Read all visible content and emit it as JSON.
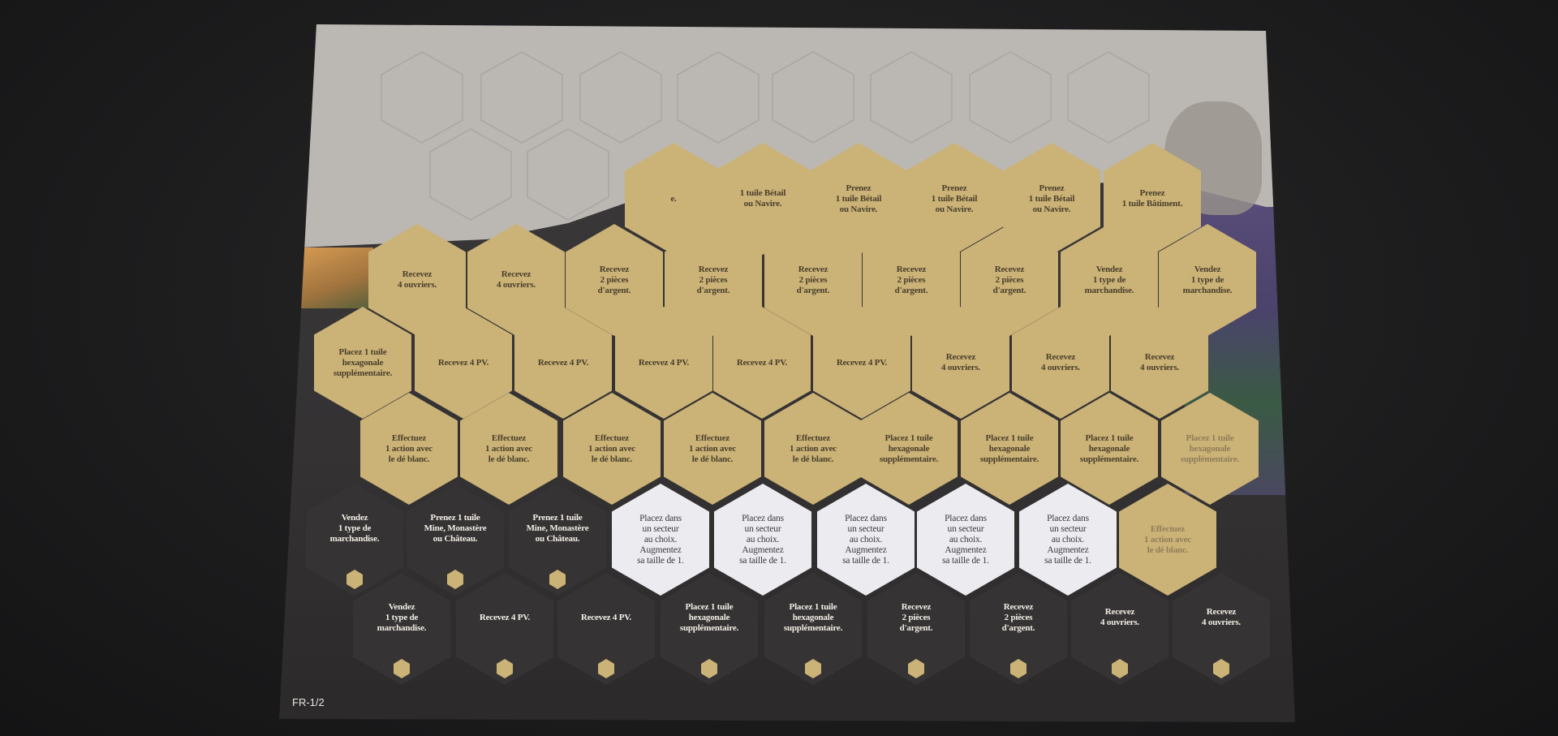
{
  "photo_subject": "punchboard of hexagonal tiles",
  "colors": {
    "gold": "#cbb276",
    "dark": "#363334",
    "white": "#ecebef",
    "cardboard": "#bbb8b4",
    "table": "#1b1b1c"
  },
  "rows": [
    {
      "tiles": [
        {
          "text": "e.",
          "style": "gold"
        },
        {
          "text": "1 tuile Bétail\nou Navire.",
          "style": "gold"
        },
        {
          "text": "Prenez\n1 tuile Bétail\nou Navire.",
          "style": "gold"
        },
        {
          "text": "Prenez\n1 tuile Bétail\nou Navire.",
          "style": "gold"
        },
        {
          "text": "Prenez\n1 tuile Bétail\nou Navire.",
          "style": "gold"
        },
        {
          "text": "Prenez\n1 tuile Bâtiment.",
          "style": "gold"
        }
      ]
    },
    {
      "tiles": [
        {
          "text": "Recevez\n4 ouvriers.",
          "style": "gold"
        },
        {
          "text": "Recevez\n4 ouvriers.",
          "style": "gold"
        },
        {
          "text": "Recevez\n2 pièces\nd'argent.",
          "style": "gold"
        },
        {
          "text": "Recevez\n2 pièces\nd'argent.",
          "style": "gold"
        },
        {
          "text": "Recevez\n2 pièces\nd'argent.",
          "style": "gold"
        },
        {
          "text": "Recevez\n2 pièces\nd'argent.",
          "style": "gold"
        },
        {
          "text": "Recevez\n2 pièces\nd'argent.",
          "style": "gold"
        },
        {
          "text": "Vendez\n1 type de\nmarchandise.",
          "style": "gold"
        },
        {
          "text": "Vendez\n1 type de\nmarchandise.",
          "style": "gold"
        }
      ]
    },
    {
      "tiles": [
        {
          "text": "Placez 1 tuile\nhexagonale\nsupplémentaire.",
          "style": "gold"
        },
        {
          "text": "Recevez 4 PV.",
          "style": "gold"
        },
        {
          "text": "Recevez 4 PV.",
          "style": "gold"
        },
        {
          "text": "Recevez 4 PV.",
          "style": "gold"
        },
        {
          "text": "Recevez 4 PV.",
          "style": "gold"
        },
        {
          "text": "Recevez 4 PV.",
          "style": "gold"
        },
        {
          "text": "Recevez\n4 ouvriers.",
          "style": "gold"
        },
        {
          "text": "Recevez\n4 ouvriers.",
          "style": "gold"
        },
        {
          "text": "Recevez\n4 ouvriers.",
          "style": "gold"
        }
      ]
    },
    {
      "tiles": [
        {
          "text": "Effectuez\n1 action avec\nle dé blanc.",
          "style": "gold"
        },
        {
          "text": "Effectuez\n1 action avec\nle dé blanc.",
          "style": "gold"
        },
        {
          "text": "Effectuez\n1 action avec\nle dé blanc.",
          "style": "gold"
        },
        {
          "text": "Effectuez\n1 action avec\nle dé blanc.",
          "style": "gold"
        },
        {
          "text": "Effectuez\n1 action avec\nle dé blanc.",
          "style": "gold"
        },
        {
          "text": "Placez 1 tuile\nhexagonale\nsupplémentaire.",
          "style": "gold"
        },
        {
          "text": "Placez 1 tuile\nhexagonale\nsupplémentaire.",
          "style": "gold"
        },
        {
          "text": "Placez 1 tuile\nhexagonale\nsupplémentaire.",
          "style": "gold"
        },
        {
          "text": "Placez 1 tuile\nhexagonale\nsupplémentaire.",
          "style": "gold"
        }
      ]
    },
    {
      "tiles": [
        {
          "text": "Vendez\n1 type de\nmarchandise.",
          "style": "dark",
          "marker": true
        },
        {
          "text": "Prenez 1 tuile\nMine, Monastère\nou Château.",
          "style": "dark",
          "marker": true
        },
        {
          "text": "Prenez 1 tuile\nMine, Monastère\nou Château.",
          "style": "dark",
          "marker": true
        },
        {
          "text": "Placez dans\nun secteur\nau choix.\nAugmentez\nsa taille de 1.",
          "style": "white"
        },
        {
          "text": "Placez dans\nun secteur\nau choix.\nAugmentez\nsa taille de 1.",
          "style": "white"
        },
        {
          "text": "Placez dans\nun secteur\nau choix.\nAugmentez\nsa taille de 1.",
          "style": "white"
        },
        {
          "text": "Placez dans\nun secteur\nau choix.\nAugmentez\nsa taille de 1.",
          "style": "white"
        },
        {
          "text": "Placez dans\nun secteur\nau choix.\nAugmentez\nsa taille de 1.",
          "style": "white"
        },
        {
          "text": "Effectuez\n1 action avec\nle dé blanc.",
          "style": "gold"
        }
      ]
    },
    {
      "tiles": [
        {
          "text": "Vendez\n1 type de\nmarchandise.",
          "style": "dark",
          "marker": true
        },
        {
          "text": "Recevez 4 PV.",
          "style": "dark",
          "marker": true
        },
        {
          "text": "Recevez 4 PV.",
          "style": "dark",
          "marker": true
        },
        {
          "text": "Placez 1 tuile\nhexagonale\nsupplémentaire.",
          "style": "dark",
          "marker": true
        },
        {
          "text": "Placez 1 tuile\nhexagonale\nsupplémentaire.",
          "style": "dark",
          "marker": true
        },
        {
          "text": "Recevez\n2 pièces\nd'argent.",
          "style": "dark",
          "marker": true
        },
        {
          "text": "Recevez\n2 pièces\nd'argent.",
          "style": "dark",
          "marker": true
        },
        {
          "text": "Recevez\n4 ouvriers.",
          "style": "dark",
          "marker": true
        },
        {
          "text": "Recevez\n4 ouvriers.",
          "style": "dark",
          "marker": true
        }
      ]
    }
  ],
  "sheet_code": "FR-1/2"
}
